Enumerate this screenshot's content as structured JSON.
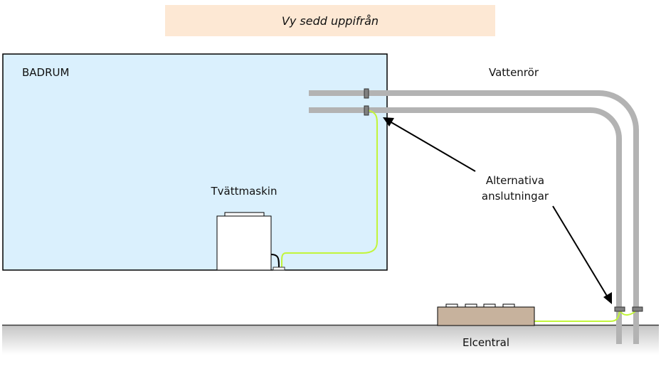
{
  "title": "Vy sedd uppifrån",
  "labels": {
    "bathroom": "BADRUM",
    "water_pipes": "Vattenrör",
    "washing_machine": "Tvättmaskin",
    "alt_connections_line1": "Alternativa",
    "alt_connections_line2": "anslutningar",
    "electrical_panel": "Elcentral"
  },
  "colors": {
    "title_bg": "#fde8d4",
    "bathroom_fill": "#daf0fd",
    "pipe": "#b3b3b3",
    "cable": "#c2f53a",
    "panel_fill": "#c7b29d",
    "clamp": "#808080"
  }
}
